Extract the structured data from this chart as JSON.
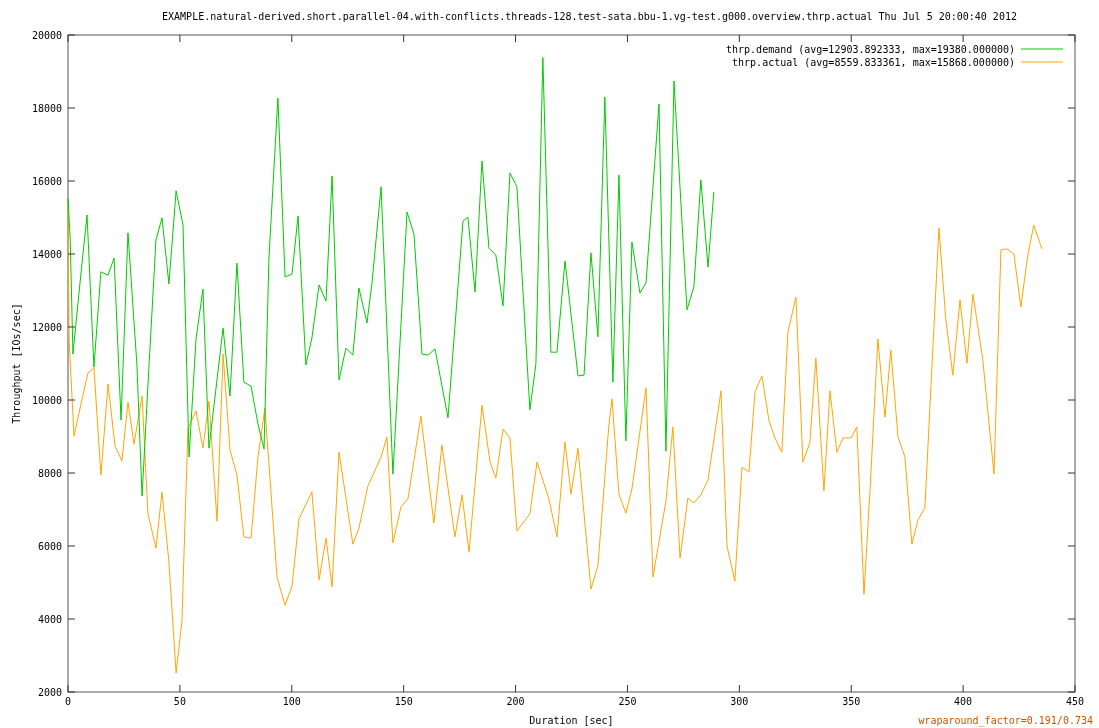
{
  "chart_data": {
    "type": "line",
    "title": "EXAMPLE.natural-derived.short.parallel-04.with-conflicts.threads-128.test-sata.bbu-1.vg-test.g000.overview.thrp.actual Thu Jul  5 20:00:40 2012",
    "xlabel": "Duration [sec]",
    "ylabel": "Throughput [IOs/sec]",
    "annotations": [
      "wraparound_factor=0.191/0.734"
    ],
    "xlim": [
      0,
      450
    ],
    "ylim": [
      2000,
      20000
    ],
    "xticks": [
      0,
      50,
      100,
      150,
      200,
      250,
      300,
      350,
      400,
      450
    ],
    "yticks": [
      2000,
      4000,
      6000,
      8000,
      10000,
      12000,
      14000,
      16000,
      18000,
      20000
    ],
    "grid": false,
    "legend": "top right",
    "series": [
      {
        "name": "thrp.demand  (avg=12903.892333, max=19380.000000)",
        "color": "#00cc00",
        "x": [
          0,
          1.0,
          2.2,
          5.4,
          8.5,
          11.6,
          14.7,
          17.9,
          20.6,
          23.7,
          26.8,
          30.8,
          33.1,
          35.7,
          39.3,
          42.0,
          45.1,
          48.3,
          51.4,
          54.1,
          57.2,
          60.3,
          63.0,
          69.3,
          72.4,
          75.5,
          78.6,
          81.8,
          84.9,
          87.6,
          89.8,
          93.8,
          97.0,
          100.1,
          102.8,
          106.3,
          109.0,
          112.2,
          115.3,
          118.0,
          121.1,
          124.2,
          127.3,
          130.0,
          133.6,
          135.8,
          139.9,
          145.2,
          151.5,
          154.6,
          158.2,
          160.9,
          164.0,
          169.8,
          176.5,
          178.7,
          181.9,
          185.0,
          188.1,
          191.2,
          194.4,
          197.5,
          200.6,
          206.4,
          209.1,
          212.2,
          215.8,
          218.5,
          222.1,
          227.9,
          230.6,
          233.7,
          236.8,
          239.9,
          243.5,
          246.2,
          249.3,
          252.0,
          255.6,
          258.3,
          264.1,
          267.2,
          270.8,
          276.6,
          279.7,
          282.8,
          286.0,
          288.6
        ],
        "values": [
          15530,
          14380,
          11260,
          13230,
          15070,
          10900,
          13510,
          13420,
          13890,
          9450,
          14580,
          10960,
          7370,
          10380,
          14380,
          14990,
          13180,
          15730,
          14790,
          8440,
          11670,
          13040,
          8680,
          11970,
          10110,
          13750,
          10490,
          10380,
          9340,
          8660,
          13890,
          18270,
          13370,
          13450,
          15040,
          10960,
          11700,
          13150,
          12710,
          16140,
          10550,
          11420,
          11230,
          13070,
          12110,
          13180,
          15840,
          7970,
          15150,
          14550,
          11260,
          11230,
          11400,
          9510,
          14900,
          15010,
          12960,
          16550,
          14160,
          13970,
          12580,
          16220,
          15840,
          9730,
          10990,
          19380,
          11310,
          11310,
          13810,
          10660,
          10680,
          14030,
          11730,
          18300,
          10490,
          16160,
          8880,
          14330,
          12930,
          13210,
          18110,
          8600,
          18740,
          12470,
          13100,
          16030,
          13640,
          15700
        ]
      },
      {
        "name": "thrp.actual  (avg=8559.833361, max=15868.000000)",
        "color": "#ffa500",
        "x": [
          0,
          0.5,
          2.7,
          5.8,
          8.9,
          11.6,
          14.7,
          17.9,
          21.0,
          24.1,
          26.8,
          29.5,
          33.1,
          35.7,
          39.3,
          42.0,
          45.1,
          48.3,
          50.9,
          53.6,
          57.2,
          60.3,
          63.0,
          66.6,
          69.3,
          72.4,
          75.5,
          78.6,
          81.8,
          84.9,
          88.0,
          93.4,
          97.0,
          100.1,
          103.2,
          109.0,
          112.2,
          115.3,
          118.0,
          121.1,
          127.3,
          130.0,
          134.0,
          139.9,
          142.5,
          145.2,
          148.8,
          151.9,
          157.7,
          163.5,
          167.1,
          172.9,
          176.1,
          179.2,
          185.0,
          188.6,
          191.2,
          194.4,
          197.5,
          200.6,
          206.4,
          209.6,
          214.9,
          218.5,
          222.1,
          224.8,
          227.9,
          233.7,
          236.8,
          241.7,
          243.1,
          246.2,
          249.3,
          252.0,
          258.3,
          261.4,
          267.2,
          270.3,
          273.5,
          277.0,
          279.7,
          282.8,
          286.0,
          291.8,
          294.5,
          298.0,
          301.2,
          304.3,
          307.0,
          310.1,
          313.2,
          315.9,
          319.0,
          321.7,
          325.3,
          328.4,
          331.5,
          334.2,
          337.8,
          340.5,
          343.6,
          346.3,
          349.9,
          352.5,
          355.7,
          358.4,
          361.9,
          365.1,
          367.7,
          370.9,
          374.0,
          377.1,
          379.8,
          382.9,
          389.2,
          392.3,
          395.4,
          398.6,
          401.7,
          404.4,
          408.8,
          413.8,
          416.9,
          419.6,
          422.7,
          425.8,
          428.9,
          431.6,
          435.2
        ],
        "values": [
          15370,
          11620,
          9010,
          9890,
          10740,
          10880,
          7940,
          10440,
          8740,
          8330,
          9940,
          8790,
          10110,
          6900,
          5940,
          7480,
          5560,
          2520,
          3940,
          9230,
          9700,
          8680,
          9970,
          6680,
          11260,
          8630,
          7940,
          6250,
          6220,
          8440,
          9780,
          5150,
          4380,
          4900,
          6740,
          7480,
          5070,
          6220,
          4880,
          8570,
          6050,
          6490,
          7640,
          8440,
          8990,
          6080,
          7070,
          7290,
          9560,
          6630,
          8770,
          6250,
          7400,
          5830,
          9860,
          8300,
          7860,
          9200,
          8960,
          6410,
          6880,
          8300,
          7290,
          6250,
          8850,
          7420,
          8680,
          4820,
          5450,
          9310,
          10030,
          7420,
          6900,
          7560,
          10330,
          5150,
          7230,
          9260,
          5670,
          7310,
          7180,
          7400,
          7810,
          10250,
          6000,
          5040,
          8160,
          8030,
          10220,
          10660,
          9450,
          8960,
          8570,
          11860,
          12820,
          8300,
          8820,
          11150,
          7510,
          10250,
          8570,
          8960,
          8960,
          9260,
          4680,
          7530,
          11670,
          9530,
          11370,
          8990,
          8440,
          6050,
          6710,
          7040,
          14710,
          12190,
          10680,
          12740,
          11010,
          12900,
          11100,
          7970,
          14110,
          14140,
          14000,
          12550,
          13970,
          14790,
          14140
        ]
      }
    ]
  }
}
